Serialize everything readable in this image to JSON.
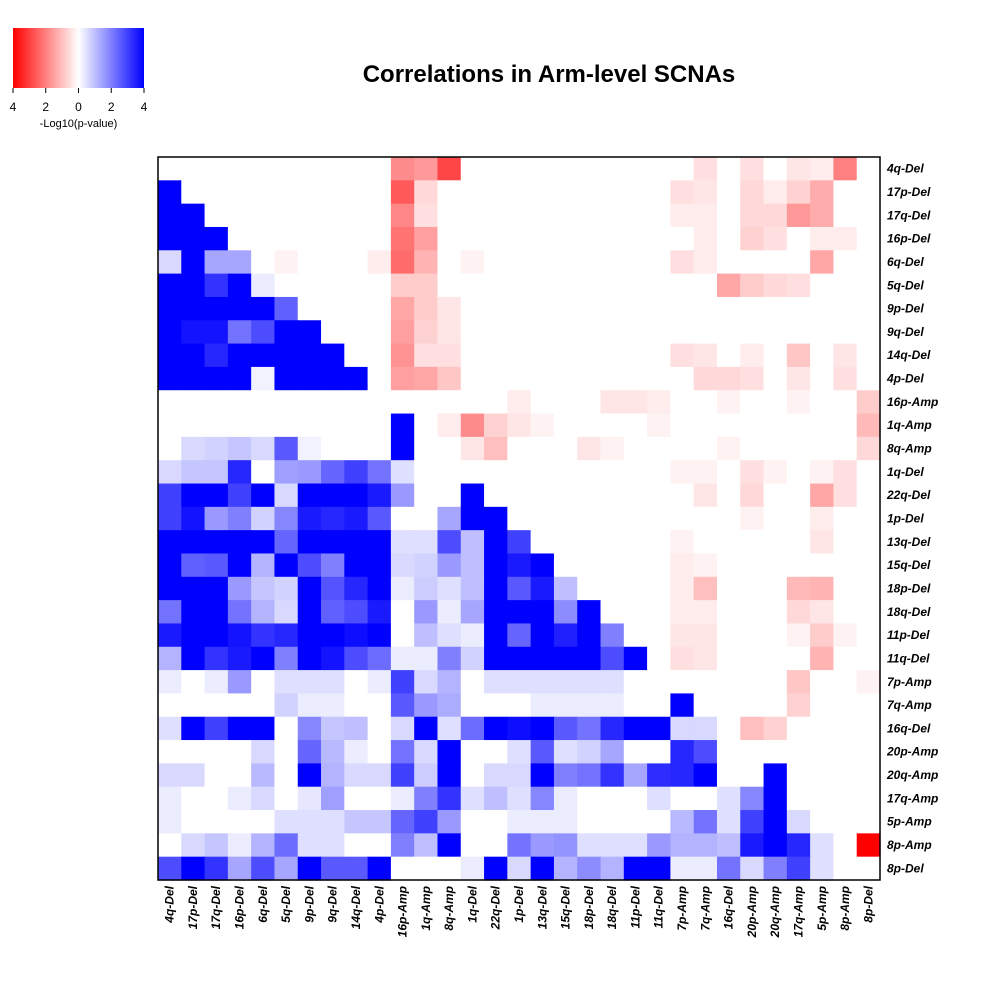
{
  "chart_data": {
    "type": "heatmap",
    "title": "Correlations in Arm-level SCNAs",
    "legend": {
      "label": "-Log10(p-value)",
      "ticks": [
        "4",
        "2",
        "0",
        "2",
        "4"
      ],
      "low_color": "#ff0000",
      "mid_color": "#ffffff",
      "high_color": "#0000ff"
    },
    "value_range": [
      -4,
      4
    ],
    "rows": [
      "4q-Del",
      "17p-Del",
      "17q-Del",
      "16p-Del",
      "6q-Del",
      "5q-Del",
      "9p-Del",
      "9q-Del",
      "14q-Del",
      "4p-Del",
      "16p-Amp",
      "1q-Amp",
      "8q-Amp",
      "1q-Del",
      "22q-Del",
      "1p-Del",
      "13q-Del",
      "15q-Del",
      "18p-Del",
      "18q-Del",
      "11p-Del",
      "11q-Del",
      "7p-Amp",
      "7q-Amp",
      "16q-Del",
      "20p-Amp",
      "20q-Amp",
      "17q-Amp",
      "5p-Amp",
      "8p-Amp",
      "8p-Del"
    ],
    "columns": [
      "4q-Del",
      "17p-Del",
      "17q-Del",
      "16p-Del",
      "6q-Del",
      "5q-Del",
      "9p-Del",
      "9q-Del",
      "14q-Del",
      "4p-Del",
      "16p-Amp",
      "1q-Amp",
      "8q-Amp",
      "1q-Del",
      "22q-Del",
      "1p-Del",
      "13q-Del",
      "15q-Del",
      "18p-Del",
      "18q-Del",
      "11p-Del",
      "11q-Del",
      "7p-Amp",
      "7q-Amp",
      "16q-Del",
      "20p-Amp",
      "20q-Amp",
      "17q-Amp",
      "5p-Amp",
      "8p-Amp",
      "8p-Del"
    ],
    "note": "values are signed -Log10(p-value); positive = blue (lower triangle), negative = red (upper triangle); estimated from colors",
    "values": [
      [
        0,
        0,
        0,
        0,
        0,
        0,
        0,
        0,
        0,
        0,
        -1.8,
        -1.6,
        -2.9,
        0,
        0,
        0,
        0,
        0,
        0,
        0,
        0,
        0,
        0,
        -0.5,
        0,
        -0.5,
        0,
        -0.4,
        -0.3,
        -2.0,
        0
      ],
      [
        4.0,
        0,
        0,
        0,
        0,
        0,
        0,
        0,
        0,
        0,
        -2.6,
        -0.6,
        0,
        0,
        0,
        0,
        0,
        0,
        0,
        0,
        0,
        0,
        -0.5,
        -0.4,
        0,
        -0.6,
        -0.3,
        -0.7,
        -1.3,
        0,
        0
      ],
      [
        4.0,
        4.0,
        0,
        0,
        0,
        0,
        0,
        0,
        0,
        0,
        -1.9,
        -0.5,
        0,
        0,
        0,
        0,
        0,
        0,
        0,
        0,
        0,
        0,
        -0.3,
        -0.3,
        0,
        -0.6,
        -0.6,
        -1.6,
        -1.3,
        0,
        0
      ],
      [
        4.0,
        4.0,
        4.0,
        0,
        0,
        0,
        0,
        0,
        0,
        0,
        -2.2,
        -1.5,
        0,
        0,
        0,
        0,
        0,
        0,
        0,
        0,
        0,
        0,
        0,
        -0.3,
        0,
        -0.7,
        -0.5,
        0,
        -0.3,
        -0.3,
        0
      ],
      [
        0.6,
        4.0,
        1.4,
        1.4,
        0,
        -0.2,
        0,
        0,
        0,
        -0.3,
        -2.3,
        -1.2,
        0,
        -0.2,
        0,
        0,
        0,
        0,
        0,
        0,
        0,
        0,
        -0.5,
        -0.3,
        0,
        0,
        0,
        0,
        -1.4,
        0,
        0
      ],
      [
        4.0,
        4.0,
        3.2,
        4.0,
        0.3,
        0,
        0,
        0,
        0,
        0,
        -0.8,
        -0.8,
        0,
        0,
        0,
        0,
        0,
        0,
        0,
        0,
        0,
        0,
        0,
        0,
        -1.4,
        -0.8,
        -0.6,
        -0.5,
        0,
        0,
        0
      ],
      [
        4.0,
        4.0,
        4.0,
        4.0,
        4.0,
        2.5,
        0,
        0,
        0,
        0,
        -1.4,
        -0.8,
        -0.4,
        0,
        0,
        0,
        0,
        0,
        0,
        0,
        0,
        0,
        0,
        0,
        0,
        0,
        0,
        0,
        0,
        0,
        0
      ],
      [
        4.0,
        3.7,
        3.7,
        2.2,
        2.8,
        4.0,
        4.0,
        0,
        0,
        0,
        -1.5,
        -0.7,
        -0.4,
        0,
        0,
        0,
        0,
        0,
        0,
        0,
        0,
        0,
        0,
        0,
        0,
        0,
        0,
        0,
        0,
        0,
        0
      ],
      [
        4.0,
        4.0,
        3.4,
        4.0,
        4.0,
        4.0,
        4.0,
        4.0,
        0,
        0,
        -1.7,
        -0.5,
        -0.5,
        0,
        0,
        0,
        0,
        0,
        0,
        0,
        0,
        0,
        -0.5,
        -0.4,
        0,
        -0.3,
        0,
        -0.9,
        0,
        -0.4,
        0
      ],
      [
        4.0,
        4.0,
        4.0,
        4.0,
        0.2,
        4.0,
        4.0,
        4.0,
        4.0,
        0,
        -1.5,
        -1.4,
        -0.9,
        0,
        0,
        0,
        0,
        0,
        0,
        0,
        0,
        0,
        0,
        -0.6,
        -0.6,
        -0.5,
        0,
        -0.4,
        0,
        -0.5,
        0
      ],
      [
        0,
        0,
        0,
        0,
        0,
        0,
        0,
        0,
        0,
        0,
        0,
        0,
        0,
        0,
        0,
        -0.3,
        0,
        0,
        0,
        -0.4,
        -0.4,
        -0.3,
        0,
        0,
        -0.2,
        0,
        0,
        -0.2,
        0,
        0,
        -0.8
      ],
      [
        0,
        0,
        0,
        0,
        0,
        0,
        0,
        0,
        0,
        0,
        4.0,
        0,
        -0.3,
        -1.8,
        -0.7,
        -0.4,
        -0.2,
        0,
        0,
        0,
        0,
        -0.2,
        0,
        0,
        0,
        0,
        0,
        0,
        0,
        0,
        -1.1
      ],
      [
        0,
        0.6,
        0.7,
        0.9,
        0.6,
        2.6,
        0.2,
        0,
        0,
        0,
        4.0,
        0,
        0,
        -0.4,
        -1.0,
        0,
        0,
        0,
        -0.4,
        -0.2,
        0,
        0,
        0,
        0,
        -0.2,
        0,
        0,
        0,
        0,
        0,
        -0.6
      ],
      [
        0.6,
        0.9,
        0.9,
        3.4,
        0,
        1.5,
        1.6,
        2.4,
        3.0,
        2.2,
        0.5,
        0,
        0,
        0,
        0,
        0,
        0,
        0,
        0,
        0,
        0,
        0,
        -0.2,
        -0.2,
        0,
        -0.5,
        -0.2,
        0,
        -0.2,
        -0.5,
        0
      ],
      [
        3.0,
        4.0,
        4.0,
        3.0,
        4.0,
        0.6,
        4.0,
        4.0,
        4.0,
        3.6,
        1.6,
        0,
        0,
        4.0,
        0,
        0,
        0,
        0,
        0,
        0,
        0,
        0,
        0,
        -0.4,
        0,
        -0.6,
        0,
        0,
        -1.4,
        -0.5,
        0
      ],
      [
        3.0,
        3.7,
        1.6,
        2.0,
        0.7,
        1.9,
        3.6,
        3.4,
        3.6,
        2.6,
        0,
        0,
        1.4,
        4.0,
        4.0,
        0,
        0,
        0,
        0,
        0,
        0,
        0,
        0,
        0,
        0,
        -0.2,
        0,
        0,
        -0.3,
        0,
        0
      ],
      [
        4.0,
        4.0,
        4.0,
        4.0,
        4.0,
        2.4,
        4.0,
        4.0,
        4.0,
        4.0,
        0.5,
        0.5,
        2.8,
        1.0,
        4.0,
        3.0,
        0,
        0,
        0,
        0,
        0,
        0,
        -0.2,
        0,
        0,
        0,
        0,
        0,
        -0.4,
        0,
        0
      ],
      [
        4.0,
        2.5,
        2.6,
        4.0,
        1.2,
        4.0,
        2.8,
        2.0,
        4.0,
        4.0,
        0.6,
        0.7,
        1.6,
        1.0,
        4.0,
        3.6,
        4.0,
        0,
        0,
        0,
        0,
        0,
        -0.3,
        -0.2,
        0,
        0,
        0,
        0,
        0,
        0,
        0
      ],
      [
        4.0,
        4.0,
        4.0,
        1.6,
        0.9,
        0.7,
        4.0,
        2.7,
        3.4,
        4.0,
        0.3,
        0.8,
        0.5,
        1.0,
        4.0,
        2.6,
        3.6,
        1.0,
        0,
        0,
        0,
        0,
        -0.3,
        -1.0,
        0,
        0,
        0,
        -1.1,
        -1.2,
        0,
        0
      ],
      [
        2.2,
        4.0,
        4.0,
        2.2,
        1.2,
        0.6,
        4.0,
        2.5,
        2.8,
        3.6,
        0,
        1.6,
        0.3,
        1.4,
        4.0,
        4.0,
        4.0,
        1.8,
        4.0,
        0,
        0,
        0,
        -0.3,
        -0.3,
        0,
        0,
        0,
        -0.6,
        -0.4,
        0,
        0
      ],
      [
        3.6,
        4.0,
        4.0,
        3.7,
        3.2,
        3.4,
        4.0,
        4.0,
        3.8,
        4.0,
        0,
        1.0,
        0.5,
        0.3,
        4.0,
        2.4,
        4.0,
        3.5,
        4.0,
        2.0,
        0,
        0,
        -0.4,
        -0.4,
        0,
        0,
        0,
        -0.2,
        -0.8,
        -0.2,
        0
      ],
      [
        1.2,
        4.0,
        3.2,
        3.6,
        4.0,
        2.0,
        4.0,
        3.7,
        2.8,
        2.3,
        0.3,
        0.3,
        2.0,
        0.7,
        4.0,
        4.0,
        4.0,
        4.0,
        4.0,
        2.8,
        4.0,
        0,
        -0.5,
        -0.4,
        0,
        0,
        0,
        0,
        -1.2,
        0,
        0
      ],
      [
        0.3,
        0,
        0.3,
        1.6,
        0,
        0.5,
        0.5,
        0.5,
        0,
        0.3,
        3.0,
        0.6,
        1.2,
        0,
        0.5,
        0.5,
        0.5,
        0.5,
        0.5,
        0.5,
        0,
        0,
        0,
        0,
        0,
        0,
        0,
        -0.9,
        0,
        0,
        -0.2
      ],
      [
        0,
        0,
        0,
        0,
        0,
        0.7,
        0.3,
        0.3,
        0,
        0,
        2.6,
        1.6,
        1.3,
        0,
        0,
        0,
        0.3,
        0.3,
        0.3,
        0.3,
        0,
        0,
        4.0,
        0,
        0,
        0,
        0,
        -0.7,
        0,
        0,
        0
      ],
      [
        0.5,
        4.0,
        3.0,
        4.0,
        4.0,
        0,
        1.9,
        0.9,
        1.0,
        0,
        0.6,
        4.0,
        0.5,
        2.3,
        4.0,
        3.8,
        4.0,
        2.6,
        2.2,
        3.4,
        4.0,
        4.0,
        0.6,
        0.6,
        0,
        -1.0,
        -0.7,
        0,
        0,
        0,
        0
      ],
      [
        0,
        0,
        0,
        0,
        0.6,
        0,
        2.4,
        1.1,
        0.3,
        0,
        2.2,
        0.6,
        4.0,
        0,
        0,
        0.5,
        2.6,
        0.5,
        0.7,
        1.4,
        0,
        0,
        3.4,
        2.8,
        0,
        0,
        0,
        0,
        0,
        0,
        0
      ],
      [
        0.6,
        0.6,
        0,
        0,
        1.1,
        0,
        4.0,
        1.2,
        0.6,
        0.6,
        3.0,
        0.8,
        4.0,
        0,
        0.6,
        0.6,
        4.0,
        2.0,
        2.2,
        3.2,
        1.4,
        3.3,
        3.4,
        4.0,
        0,
        0,
        4.0,
        0,
        0,
        0,
        0
      ],
      [
        0.3,
        0,
        0,
        0.3,
        0.6,
        0,
        0.4,
        1.5,
        0,
        0,
        0.3,
        2.0,
        3.2,
        0.5,
        1.0,
        0.5,
        1.9,
        0.3,
        0,
        0,
        0,
        0.5,
        0,
        0,
        0.5,
        1.9,
        4.0,
        0,
        0,
        0,
        0
      ],
      [
        0.3,
        0,
        0,
        0,
        0,
        0.5,
        0.5,
        0.5,
        0.9,
        0.9,
        2.4,
        3.0,
        1.6,
        0,
        0,
        0.3,
        0.3,
        0.3,
        0,
        0,
        0,
        0,
        1.1,
        2.2,
        0.5,
        3.0,
        4.0,
        0.6,
        0,
        0,
        0
      ],
      [
        0,
        0.6,
        0.9,
        0.3,
        1.2,
        2.3,
        0.5,
        0.5,
        0,
        0,
        2.0,
        1.0,
        4.0,
        0,
        0,
        2.2,
        1.6,
        1.7,
        0.5,
        0.5,
        0.5,
        1.6,
        1.2,
        1.2,
        1.0,
        3.6,
        4.0,
        3.4,
        0.5,
        0,
        -4.0
      ],
      [
        2.8,
        4.0,
        3.2,
        1.4,
        2.8,
        1.4,
        4.0,
        2.6,
        2.6,
        4.0,
        0,
        0,
        0,
        0.3,
        4.0,
        0.6,
        4.0,
        1.2,
        1.8,
        1.2,
        4.0,
        4.0,
        0.3,
        0.3,
        2.2,
        0.6,
        2.0,
        3.0,
        0.5,
        0,
        0
      ]
    ]
  }
}
